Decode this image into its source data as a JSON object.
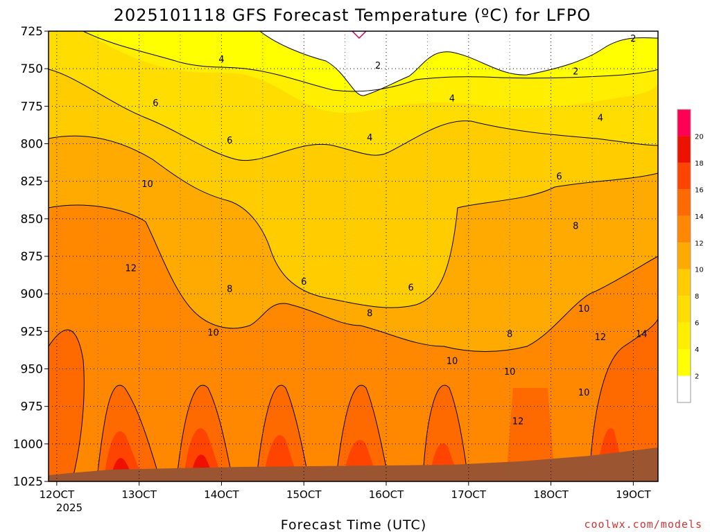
{
  "chart_data": {
    "type": "heatmap",
    "title": "2025101118 GFS Forecast Temperature (ºC) for LFPO",
    "xlabel": "Forecast Time (UTC)",
    "ylabel": "",
    "x_ticks": [
      "12OCT",
      "13OCT",
      "14OCT",
      "15OCT",
      "16OCT",
      "17OCT",
      "18OCT",
      "19OCT"
    ],
    "x_year_label": "2025",
    "y_ticks": [
      725,
      750,
      775,
      800,
      825,
      850,
      875,
      900,
      925,
      950,
      975,
      1000,
      1025
    ],
    "ylim": [
      1025,
      725
    ],
    "xlim_days": [
      11.9,
      19.3
    ],
    "colorbar": {
      "levels": [
        2,
        4,
        6,
        8,
        10,
        12,
        14,
        16,
        18,
        20
      ],
      "colors": [
        "#ffffff",
        "#ffff00",
        "#ffee00",
        "#ffdd00",
        "#ffcc00",
        "#ffaa00",
        "#ff8800",
        "#ff6a00",
        "#ff4400",
        "#ee1100",
        "#ff0055"
      ]
    },
    "contour_labels": [
      {
        "text": "2",
        "day": 15.9,
        "p": 748
      },
      {
        "text": "2",
        "day": 18.3,
        "p": 752
      },
      {
        "text": "2",
        "day": 19.0,
        "p": 730
      },
      {
        "text": "4",
        "day": 14.0,
        "p": 744
      },
      {
        "text": "4",
        "day": 15.8,
        "p": 796
      },
      {
        "text": "4",
        "day": 16.8,
        "p": 770
      },
      {
        "text": "4",
        "day": 18.6,
        "p": 783
      },
      {
        "text": "6",
        "day": 13.2,
        "p": 773
      },
      {
        "text": "6",
        "day": 14.1,
        "p": 798
      },
      {
        "text": "6",
        "day": 15.0,
        "p": 892
      },
      {
        "text": "6",
        "day": 16.3,
        "p": 896
      },
      {
        "text": "6",
        "day": 18.1,
        "p": 822
      },
      {
        "text": "8",
        "day": 14.1,
        "p": 897
      },
      {
        "text": "8",
        "day": 15.8,
        "p": 913
      },
      {
        "text": "8",
        "day": 17.5,
        "p": 927
      },
      {
        "text": "8",
        "day": 18.3,
        "p": 855
      },
      {
        "text": "10",
        "day": 13.1,
        "p": 827
      },
      {
        "text": "10",
        "day": 13.9,
        "p": 926
      },
      {
        "text": "10",
        "day": 16.8,
        "p": 945
      },
      {
        "text": "10",
        "day": 17.5,
        "p": 952
      },
      {
        "text": "10",
        "day": 18.4,
        "p": 910
      },
      {
        "text": "10",
        "day": 18.4,
        "p": 966
      },
      {
        "text": "12",
        "day": 12.9,
        "p": 883
      },
      {
        "text": "12",
        "day": 17.6,
        "p": 985
      },
      {
        "text": "12",
        "day": 18.6,
        "p": 929
      },
      {
        "text": "14",
        "day": 19.1,
        "p": 927
      }
    ]
  },
  "colors": {
    "terrain": "#9c5531",
    "pressure_contour": "#cc0066",
    "contour_line": "#000000"
  },
  "credit": "coolwx.com/models"
}
